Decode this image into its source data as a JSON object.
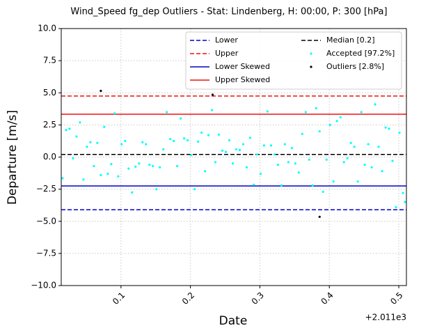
{
  "chart_data": {
    "type": "scatter",
    "title": "Wind_Speed fg_dep Outliers - Stat: Lindenberg, H: 00:00, P: 300 [hPa]",
    "xlabel": "Date",
    "ylabel": "Departure [m/s]",
    "x_offset_label": "+2.011e3",
    "xlim": [
      0.014,
      0.511
    ],
    "ylim": [
      -10,
      10
    ],
    "xticks": [
      0.1,
      0.2,
      0.3,
      0.4,
      0.5
    ],
    "yticks": [
      {
        "value": -10,
        "label": "−10.0"
      },
      {
        "value": -7.5,
        "label": "−7.5"
      },
      {
        "value": -5,
        "label": "−5.0"
      },
      {
        "value": -2.5,
        "label": "−2.5"
      },
      {
        "value": 0,
        "label": "0.0"
      },
      {
        "value": 2.5,
        "label": "2.5"
      },
      {
        "value": 5,
        "label": "5.0"
      },
      {
        "value": 7.5,
        "label": "7.5"
      },
      {
        "value": 10,
        "label": "10.0"
      }
    ],
    "grid": true,
    "legend": "upper right",
    "legend_columns": 2,
    "hlines": [
      {
        "name": "Lower",
        "color": "#0000cc",
        "style": "dashed",
        "value": -4.1
      },
      {
        "name": "Upper",
        "color": "#ee1111",
        "style": "dashed",
        "value": 4.75
      },
      {
        "name": "Lower Skewed",
        "color": "#0000cc",
        "style": "solid",
        "value": -2.25
      },
      {
        "name": "Upper Skewed",
        "color": "#ee1111",
        "style": "solid",
        "value": 3.33
      },
      {
        "name": "Median [0.2]",
        "color": "#000000",
        "style": "dashed",
        "value": 0.2
      }
    ],
    "series": [
      {
        "name": "Accepted [97.2%]",
        "color": "#00ffff",
        "x": [
          0.016,
          0.021,
          0.026,
          0.031,
          0.036,
          0.041,
          0.046,
          0.051,
          0.056,
          0.061,
          0.066,
          0.071,
          0.076,
          0.081,
          0.086,
          0.091,
          0.096,
          0.101,
          0.106,
          0.111,
          0.116,
          0.121,
          0.126,
          0.131,
          0.136,
          0.141,
          0.146,
          0.151,
          0.156,
          0.161,
          0.166,
          0.171,
          0.176,
          0.181,
          0.186,
          0.191,
          0.196,
          0.201,
          0.206,
          0.211,
          0.216,
          0.221,
          0.226,
          0.231,
          0.236,
          0.241,
          0.246,
          0.251,
          0.256,
          0.261,
          0.266,
          0.271,
          0.276,
          0.281,
          0.286,
          0.291,
          0.296,
          0.301,
          0.306,
          0.311,
          0.316,
          0.321,
          0.326,
          0.331,
          0.336,
          0.341,
          0.346,
          0.351,
          0.356,
          0.361,
          0.366,
          0.371,
          0.376,
          0.381,
          0.386,
          0.391,
          0.396,
          0.401,
          0.406,
          0.411,
          0.416,
          0.421,
          0.426,
          0.431,
          0.436,
          0.441,
          0.446,
          0.451,
          0.456,
          0.461,
          0.466,
          0.471,
          0.476,
          0.481,
          0.486,
          0.491,
          0.496,
          0.501,
          0.506,
          0.509
        ],
        "values": [
          -1.65,
          2.1,
          2.2,
          -0.1,
          1.6,
          2.7,
          -1.75,
          0.8,
          1.15,
          -0.7,
          1.1,
          -1.4,
          2.35,
          -1.3,
          -0.55,
          3.4,
          -1.5,
          1.0,
          1.25,
          -0.9,
          -2.75,
          -0.75,
          -0.5,
          1.15,
          1.0,
          -0.6,
          -0.7,
          -2.5,
          -0.8,
          0.6,
          3.5,
          1.4,
          1.25,
          -0.7,
          3.0,
          1.45,
          1.3,
          0.15,
          -2.5,
          1.2,
          1.9,
          -1.1,
          1.7,
          3.65,
          -0.4,
          1.75,
          0.5,
          0.4,
          1.3,
          -0.5,
          0.6,
          0.55,
          1.0,
          -0.8,
          1.5,
          -2.15,
          0.2,
          -1.3,
          0.9,
          3.55,
          0.9,
          0.2,
          -0.6,
          -2.2,
          1.0,
          -0.4,
          0.7,
          -0.5,
          -1.2,
          1.8,
          3.5,
          -0.2,
          -2.2,
          3.8,
          2.0,
          -2.7,
          -0.2,
          2.5,
          -1.9,
          2.8,
          3.1,
          -0.4,
          -0.1,
          1.1,
          0.8,
          -1.9,
          3.5,
          -0.6,
          1.0,
          -0.8,
          4.1,
          0.8,
          -1.1,
          2.3,
          2.2,
          -0.3,
          -3.9,
          1.9,
          -2.8,
          -3.5
        ]
      },
      {
        "name": "Outliers [2.8%]",
        "color": "#000000",
        "x": [
          0.071,
          0.232,
          0.386
        ],
        "values": [
          5.15,
          4.85,
          -4.65
        ]
      }
    ]
  }
}
